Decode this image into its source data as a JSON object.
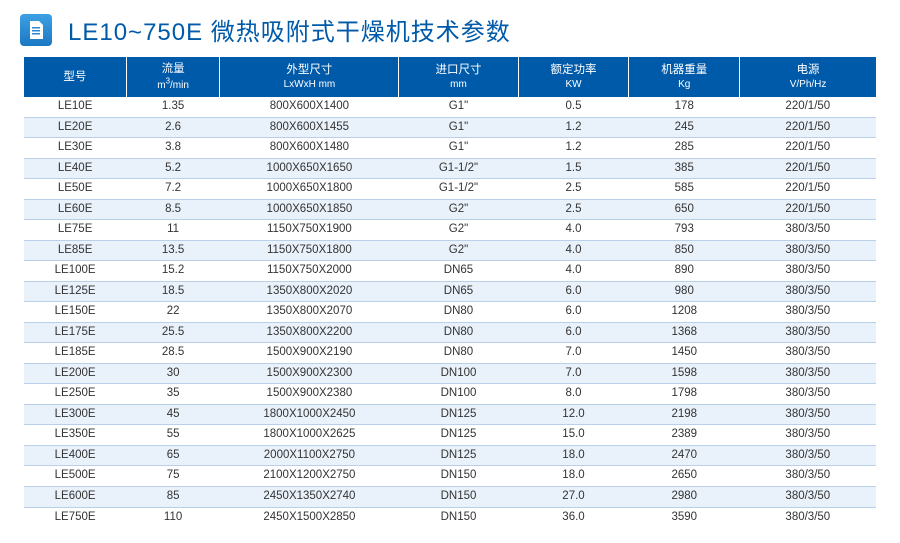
{
  "title": "LE10~750E 微热吸附式干燥机技术参数",
  "columns": [
    {
      "main": "型号",
      "sub": ""
    },
    {
      "main": "流量",
      "sub": "m³/min"
    },
    {
      "main": "外型尺寸",
      "sub": "LxWxH mm"
    },
    {
      "main": "进口尺寸",
      "sub": "mm"
    },
    {
      "main": "额定功率",
      "sub": "KW"
    },
    {
      "main": "机器重量",
      "sub": "Kg"
    },
    {
      "main": "电源",
      "sub": "V/Ph/Hz"
    }
  ],
  "column_widths": [
    "12%",
    "11%",
    "21%",
    "14%",
    "13%",
    "13%",
    "16%"
  ],
  "rows": [
    [
      "LE10E",
      "1.35",
      "800X600X1400",
      "G1\"",
      "0.5",
      "178",
      "220/1/50"
    ],
    [
      "LE20E",
      "2.6",
      "800X600X1455",
      "G1\"",
      "1.2",
      "245",
      "220/1/50"
    ],
    [
      "LE30E",
      "3.8",
      "800X600X1480",
      "G1\"",
      "1.2",
      "285",
      "220/1/50"
    ],
    [
      "LE40E",
      "5.2",
      "1000X650X1650",
      "G1-1/2\"",
      "1.5",
      "385",
      "220/1/50"
    ],
    [
      "LE50E",
      "7.2",
      "1000X650X1800",
      "G1-1/2\"",
      "2.5",
      "585",
      "220/1/50"
    ],
    [
      "LE60E",
      "8.5",
      "1000X650X1850",
      "G2\"",
      "2.5",
      "650",
      "220/1/50"
    ],
    [
      "LE75E",
      "11",
      "1150X750X1900",
      "G2\"",
      "4.0",
      "793",
      "380/3/50"
    ],
    [
      "LE85E",
      "13.5",
      "1150X750X1800",
      "G2\"",
      "4.0",
      "850",
      "380/3/50"
    ],
    [
      "LE100E",
      "15.2",
      "1150X750X2000",
      "DN65",
      "4.0",
      "890",
      "380/3/50"
    ],
    [
      "LE125E",
      "18.5",
      "1350X800X2020",
      "DN65",
      "6.0",
      "980",
      "380/3/50"
    ],
    [
      "LE150E",
      "22",
      "1350X800X2070",
      "DN80",
      "6.0",
      "1208",
      "380/3/50"
    ],
    [
      "LE175E",
      "25.5",
      "1350X800X2200",
      "DN80",
      "6.0",
      "1368",
      "380/3/50"
    ],
    [
      "LE185E",
      "28.5",
      "1500X900X2190",
      "DN80",
      "7.0",
      "1450",
      "380/3/50"
    ],
    [
      "LE200E",
      "30",
      "1500X900X2300",
      "DN100",
      "7.0",
      "1598",
      "380/3/50"
    ],
    [
      "LE250E",
      "35",
      "1500X900X2380",
      "DN100",
      "8.0",
      "1798",
      "380/3/50"
    ],
    [
      "LE300E",
      "45",
      "1800X1000X2450",
      "DN125",
      "12.0",
      "2198",
      "380/3/50"
    ],
    [
      "LE350E",
      "55",
      "1800X1000X2625",
      "DN125",
      "15.0",
      "2389",
      "380/3/50"
    ],
    [
      "LE400E",
      "65",
      "2000X1100X2750",
      "DN125",
      "18.0",
      "2470",
      "380/3/50"
    ],
    [
      "LE500E",
      "75",
      "2100X1200X2750",
      "DN150",
      "18.0",
      "2650",
      "380/3/50"
    ],
    [
      "LE600E",
      "85",
      "2450X1350X2740",
      "DN150",
      "27.0",
      "2980",
      "380/3/50"
    ],
    [
      "LE750E",
      "110",
      "2450X1500X2850",
      "DN150",
      "36.0",
      "3590",
      "380/3/50"
    ]
  ],
  "colors": {
    "brand": "#005aaa",
    "row_alt": "#e9f1fa",
    "border": "#b9cfea"
  }
}
